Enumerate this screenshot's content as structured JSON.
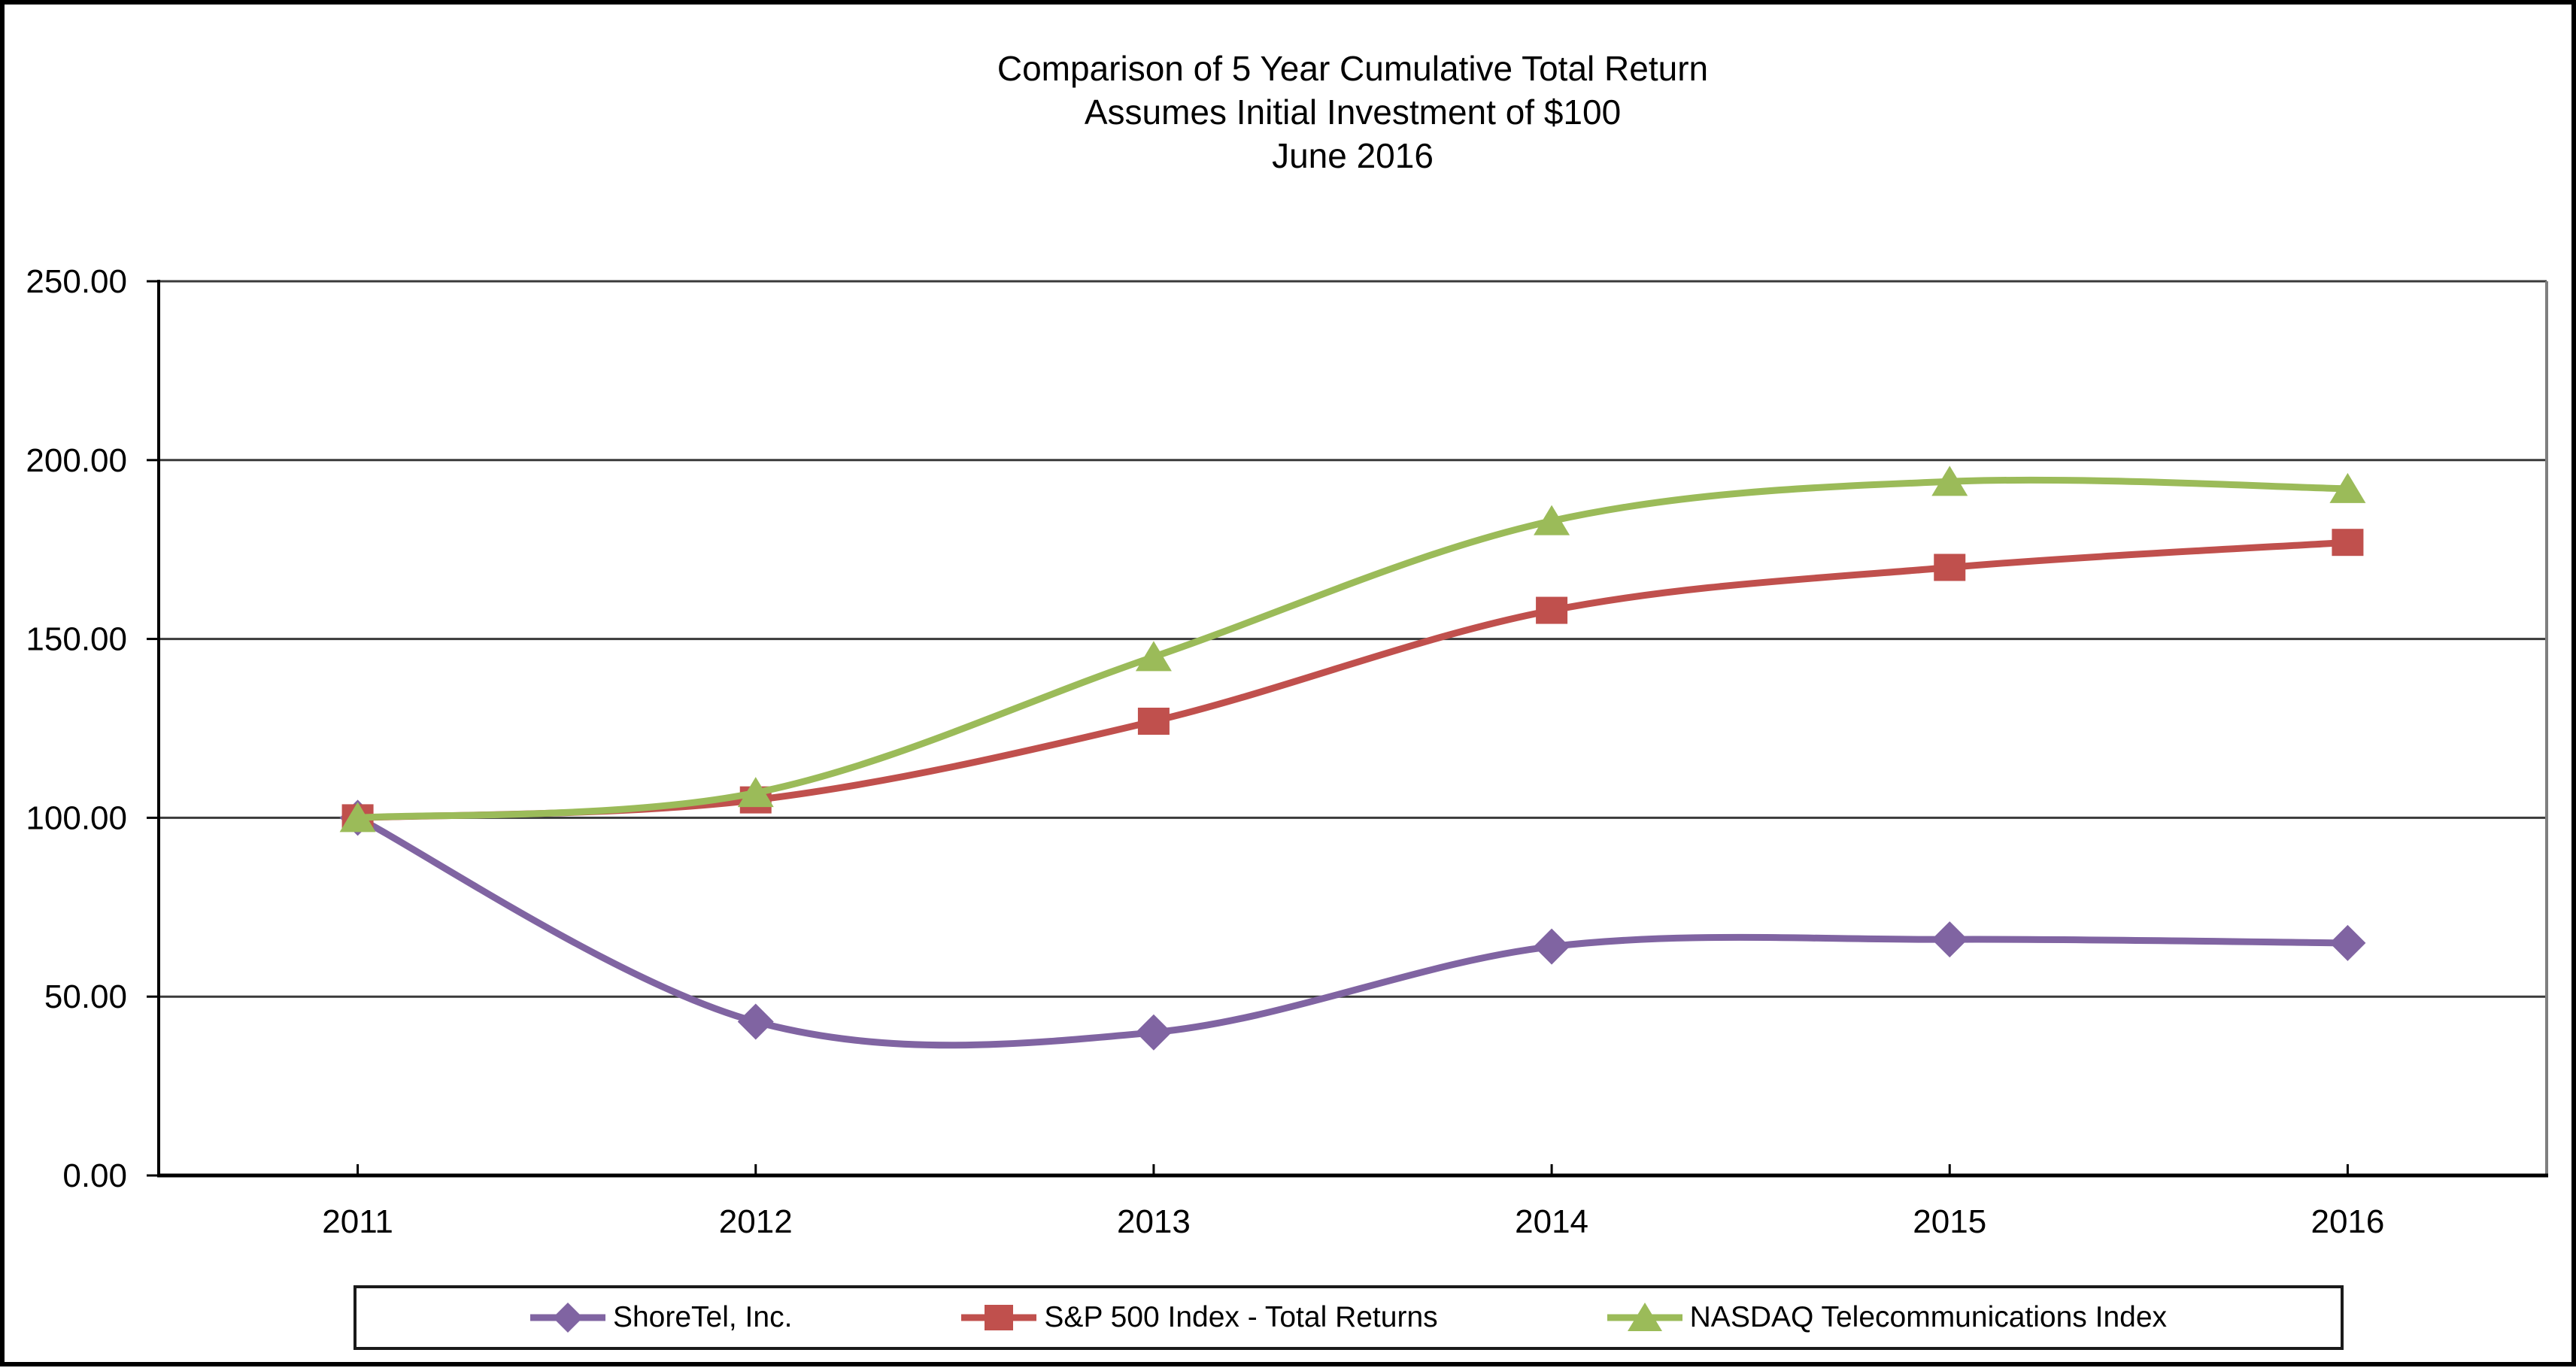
{
  "page": {
    "background_color": "#ffffff",
    "frame_border_color": "#000000"
  },
  "chart_data": {
    "type": "line",
    "smoothed": true,
    "title_lines": [
      "Comparison of 5 Year Cumulative Total Return",
      "Assumes Initial Investment of $100",
      "June 2016"
    ],
    "categories": [
      "2011",
      "2012",
      "2013",
      "2014",
      "2015",
      "2016"
    ],
    "series": [
      {
        "name": "ShoreTel, Inc.",
        "marker": "diamond",
        "color": "#8064A2",
        "values": [
          100,
          43,
          40,
          64,
          66,
          65
        ]
      },
      {
        "name": "S&P 500 Index - Total Returns",
        "marker": "square",
        "color": "#C0504D",
        "values": [
          100,
          105,
          127,
          158,
          170,
          177
        ]
      },
      {
        "name": "NASDAQ Telecommunications Index",
        "marker": "triangle",
        "color": "#9BBB59",
        "values": [
          100,
          107,
          145,
          183,
          194,
          192
        ]
      }
    ],
    "xlabel": "",
    "ylabel": "",
    "ylim": [
      0,
      250
    ],
    "y_ticks": [
      "0.00",
      "50.00",
      "100.00",
      "150.00",
      "200.00",
      "250.00"
    ],
    "grid": true,
    "legend_position": "bottom",
    "axis_colors": {
      "gridline": "#3a3a3a",
      "axis": "#000000",
      "plot_right_border": "#7f7f7f",
      "tick_label": "#000000"
    }
  }
}
